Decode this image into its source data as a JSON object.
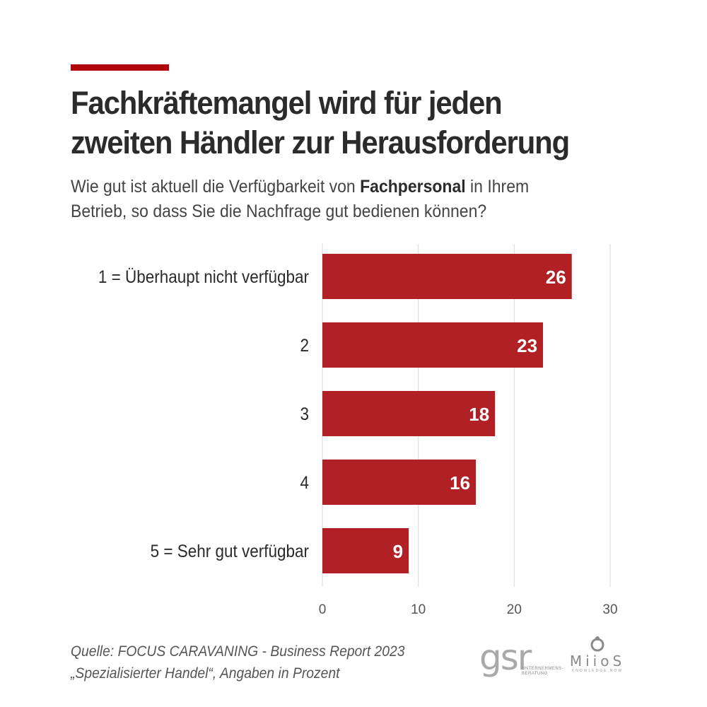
{
  "header": {
    "title_line1": "Fachkräftemangel wird für jeden",
    "title_line2": "zweiten Händler zur Herausforderung",
    "subtitle_pre": "Wie gut ist aktuell die Verfügbarkeit von ",
    "subtitle_bold": "Fachpersonal",
    "subtitle_post": " in Ihrem",
    "subtitle_line2": "Betrieb, so dass Sie die Nachfrage gut bedienen können?"
  },
  "chart_data": {
    "type": "bar",
    "orientation": "horizontal",
    "categories": [
      "1 = Überhaupt nicht verfügbar",
      "2",
      "3",
      "4",
      "5 = Sehr gut verfügbar"
    ],
    "values": [
      26,
      23,
      18,
      16,
      9
    ],
    "xlim": [
      0,
      30
    ],
    "xticks": [
      0,
      10,
      20,
      30
    ],
    "grid": true,
    "bar_color": "#b12025",
    "label_color": "#ffffff",
    "unit": "Prozent"
  },
  "footer": {
    "source_line1": "Quelle: FOCUS CARAVANING - Business Report 2023",
    "source_line2": "„Spezialisierter Handel“, Angaben in Prozent"
  },
  "logos": {
    "gsr_letters": "gsr",
    "gsr_tagline": "UNTERNEHMENS-BERATUNG",
    "miios_word": "MiioS",
    "miios_tagline": "KNOWLEDGE.NOW"
  },
  "colors": {
    "accent": "#b0070f",
    "grid": "#d9d9d9",
    "text": "#333333"
  }
}
